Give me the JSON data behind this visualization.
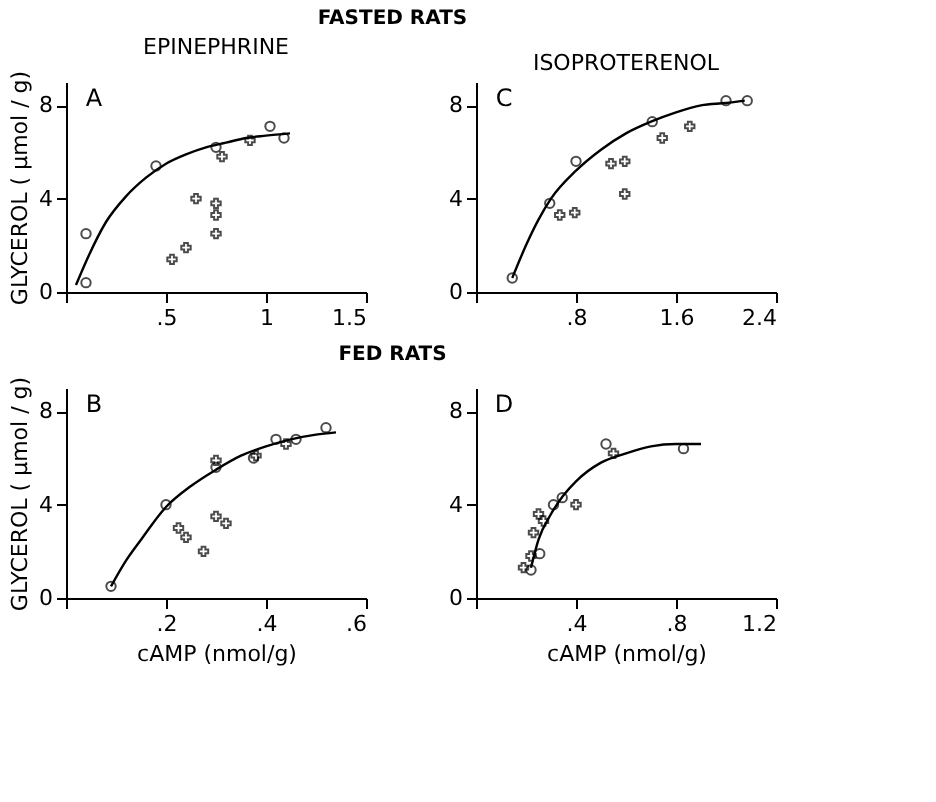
{
  "chart_data": [
    {
      "type": "scatter",
      "title": "EPINEPHRINE",
      "subtitle": "FASTED RATS",
      "ylabel": "GLYCEROL  ( µmol / g)",
      "annotations": [
        "A"
      ],
      "grid": false,
      "xlim": [
        0,
        1.5
      ],
      "ylim": [
        0,
        9
      ],
      "xticks": [
        {
          "value": 0,
          "label": null
        },
        {
          "value": 0.5,
          "label": ".5"
        },
        1,
        1.5
      ],
      "yticks": [
        0,
        4,
        8
      ],
      "series": [
        {
          "marker": "circle",
          "color": "#000000",
          "x": [
            0.1,
            0.1,
            0.45,
            0.75,
            1.02,
            1.09
          ],
          "values": [
            0.4,
            2.5,
            5.4,
            6.2,
            7.1,
            6.6
          ]
        },
        {
          "marker": "cross",
          "color": "#000000",
          "x": [
            0.53,
            0.6,
            0.65,
            0.75,
            0.75,
            0.75,
            0.78,
            0.92
          ],
          "values": [
            1.4,
            1.9,
            4.0,
            3.8,
            3.3,
            2.5,
            5.8,
            6.5
          ]
        },
        {
          "type": "line",
          "marker": "none",
          "line_style": "solid",
          "color": "#000000",
          "x": [
            0.05,
            0.1,
            0.2,
            0.3,
            0.4,
            0.5,
            0.6,
            0.7,
            0.8,
            0.9,
            1.0,
            1.12
          ],
          "values": [
            0.3,
            1.3,
            3.0,
            4.1,
            4.9,
            5.5,
            5.9,
            6.2,
            6.4,
            6.6,
            6.7,
            6.8
          ]
        }
      ]
    },
    {
      "type": "scatter",
      "title": "ISOPROTERENOL",
      "annotations": [
        "C"
      ],
      "grid": false,
      "xlim": [
        0,
        2.4
      ],
      "ylim": [
        0,
        9
      ],
      "xticks": [
        {
          "value": 0,
          "label": null
        },
        {
          "value": 0.8,
          "label": ".8"
        },
        1.6,
        2.4
      ],
      "yticks": [
        0,
        4,
        8
      ],
      "series": [
        {
          "marker": "circle",
          "color": "#000000",
          "x": [
            0.29,
            0.59,
            0.8,
            1.41,
            2.0,
            2.17
          ],
          "values": [
            0.6,
            3.8,
            5.6,
            7.3,
            8.2,
            8.2
          ]
        },
        {
          "marker": "cross",
          "color": "#000000",
          "x": [
            0.67,
            0.79,
            1.08,
            1.19,
            1.19,
            1.49,
            1.71
          ],
          "values": [
            3.3,
            3.4,
            5.5,
            5.6,
            4.2,
            6.6,
            7.1
          ]
        },
        {
          "type": "line",
          "marker": "none",
          "line_style": "solid",
          "color": "#000000",
          "x": [
            0.29,
            0.4,
            0.5,
            0.6,
            0.8,
            1.0,
            1.2,
            1.4,
            1.6,
            1.8,
            2.0,
            2.15
          ],
          "values": [
            0.6,
            2.0,
            3.1,
            4.0,
            5.2,
            6.1,
            6.8,
            7.3,
            7.7,
            8.0,
            8.1,
            8.2
          ]
        }
      ]
    },
    {
      "type": "scatter",
      "subtitle": "FED RATS",
      "xlabel": "cAMP (nmol/g)",
      "ylabel": "GLYCEROL  ( µmol / g)",
      "annotations": [
        "B"
      ],
      "grid": false,
      "xlim": [
        0,
        0.6
      ],
      "ylim": [
        0,
        9
      ],
      "xticks": [
        {
          "value": 0,
          "label": null
        },
        {
          "value": 0.2,
          "label": ".2"
        },
        {
          "value": 0.4,
          "label": ".4"
        },
        {
          "value": 0.6,
          "label": ".6"
        }
      ],
      "yticks": [
        0,
        4,
        8
      ],
      "series": [
        {
          "marker": "circle",
          "color": "#000000",
          "x": [
            0.09,
            0.2,
            0.3,
            0.375,
            0.42,
            0.46,
            0.52
          ],
          "values": [
            0.5,
            4.0,
            5.6,
            6.0,
            6.8,
            6.8,
            7.3
          ]
        },
        {
          "marker": "cross",
          "color": "#000000",
          "x": [
            0.225,
            0.24,
            0.275,
            0.3,
            0.32,
            0.3,
            0.38,
            0.44
          ],
          "values": [
            3.0,
            2.6,
            2.0,
            3.5,
            3.2,
            5.9,
            6.1,
            6.6
          ]
        },
        {
          "type": "line",
          "marker": "none",
          "line_style": "solid",
          "color": "#000000",
          "x": [
            0.09,
            0.12,
            0.15,
            0.2,
            0.25,
            0.3,
            0.35,
            0.4,
            0.45,
            0.5,
            0.54
          ],
          "values": [
            0.5,
            1.6,
            2.5,
            3.9,
            4.8,
            5.5,
            6.1,
            6.5,
            6.8,
            7.0,
            7.1
          ]
        }
      ]
    },
    {
      "type": "scatter",
      "xlabel": "cAMP (nmol/g)",
      "annotations": [
        "D"
      ],
      "grid": false,
      "xlim": [
        0,
        1.2
      ],
      "ylim": [
        0,
        9
      ],
      "xticks": [
        {
          "value": 0,
          "label": null
        },
        {
          "value": 0.4,
          "label": ".4"
        },
        {
          "value": 0.8,
          "label": ".8"
        },
        1.2
      ],
      "yticks": [
        0,
        4,
        8
      ],
      "series": [
        {
          "marker": "circle",
          "color": "#000000",
          "x": [
            0.22,
            0.255,
            0.31,
            0.345,
            0.52,
            0.83
          ],
          "values": [
            1.2,
            1.9,
            4.0,
            4.3,
            6.6,
            6.4
          ]
        },
        {
          "marker": "cross",
          "color": "#000000",
          "x": [
            0.19,
            0.22,
            0.23,
            0.25,
            0.27,
            0.4,
            0.55
          ],
          "values": [
            1.3,
            1.8,
            2.8,
            3.6,
            3.3,
            4.0,
            6.2
          ]
        },
        {
          "type": "line",
          "marker": "none",
          "line_style": "solid",
          "color": "#000000",
          "x": [
            0.22,
            0.25,
            0.3,
            0.35,
            0.4,
            0.5,
            0.6,
            0.7,
            0.8,
            0.9
          ],
          "values": [
            1.3,
            2.5,
            3.6,
            4.4,
            5.0,
            5.8,
            6.2,
            6.5,
            6.6,
            6.6
          ]
        }
      ]
    }
  ]
}
